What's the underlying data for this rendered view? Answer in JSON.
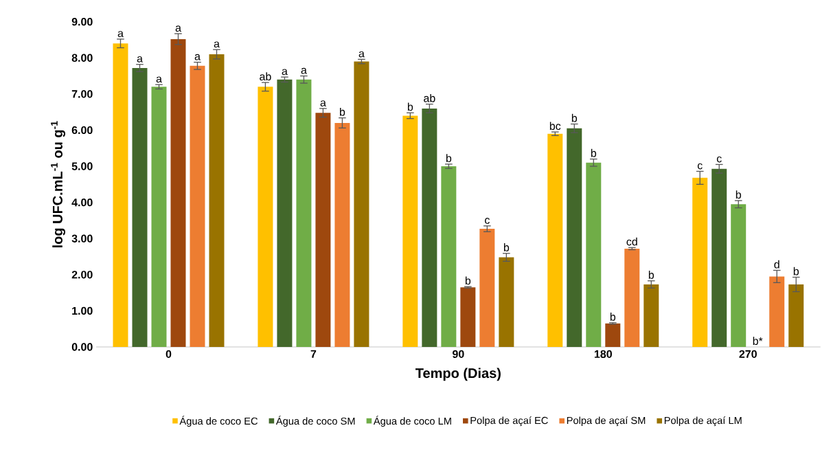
{
  "chart_data": {
    "type": "bar",
    "xlabel": "Tempo (Dias)",
    "ylabel": "log UFC.mL$^{-1}$ ou g$^{-1}$",
    "categories": [
      "0",
      "7",
      "90",
      "180",
      "270"
    ],
    "ylim": [
      0,
      9
    ],
    "yticks": [
      {
        "value": 0,
        "label": "0.00"
      },
      {
        "value": 1,
        "label": "1.00"
      },
      {
        "value": 2,
        "label": "2.00"
      },
      {
        "value": 3,
        "label": "3.00"
      },
      {
        "value": 4,
        "label": "4.00"
      },
      {
        "value": 5,
        "label": "5.00"
      },
      {
        "value": 6,
        "label": "6.00"
      },
      {
        "value": 7,
        "label": "7.00"
      },
      {
        "value": 8,
        "label": "8.00"
      },
      {
        "value": 9,
        "label": "9.00"
      }
    ],
    "grid": false,
    "legend": "bottom",
    "series": [
      {
        "name": "Água de coco EC",
        "color": "#ffc000",
        "values": [
          8.4,
          7.2,
          6.4,
          5.9,
          4.68
        ],
        "errors": [
          0.12,
          0.12,
          0.08,
          0.05,
          0.18
        ],
        "value_labels": [
          "a",
          "ab",
          "b",
          "bc",
          "c"
        ]
      },
      {
        "name": "Água de coco SM",
        "color": "#43682b",
        "values": [
          7.72,
          7.4,
          6.6,
          6.05,
          4.93
        ],
        "errors": [
          0.1,
          0.07,
          0.12,
          0.12,
          0.12
        ],
        "value_labels": [
          "a",
          "a",
          "ab",
          "b",
          "c"
        ]
      },
      {
        "name": "Água de coco LM",
        "color": "#70ad47",
        "values": [
          7.2,
          7.4,
          5.0,
          5.1,
          3.95
        ],
        "errors": [
          0.06,
          0.1,
          0.06,
          0.1,
          0.1
        ],
        "value_labels": [
          "a",
          "a",
          "b",
          "b",
          "b"
        ]
      },
      {
        "name": "Polpa de açaí EC",
        "color": "#9e480e",
        "values": [
          8.52,
          6.48,
          1.65,
          0.65,
          0
        ],
        "errors": [
          0.15,
          0.12,
          0.02,
          0.02,
          null
        ],
        "value_labels": [
          "a",
          "a",
          "b",
          "b",
          "b*"
        ]
      },
      {
        "name": "Polpa de açaí SM",
        "color": "#ed7d31",
        "values": [
          7.78,
          6.2,
          3.27,
          2.72,
          1.95
        ],
        "errors": [
          0.1,
          0.14,
          0.08,
          0.03,
          0.17
        ],
        "value_labels": [
          "a",
          "b",
          "c",
          "cd",
          "d"
        ]
      },
      {
        "name": "Polpa de açaí LM",
        "color": "#997300",
        "values": [
          8.1,
          7.9,
          2.48,
          1.73,
          1.73
        ],
        "errors": [
          0.13,
          0.06,
          0.11,
          0.1,
          0.2
        ],
        "value_labels": [
          "a",
          "a",
          "b",
          "b",
          "b"
        ]
      }
    ]
  }
}
